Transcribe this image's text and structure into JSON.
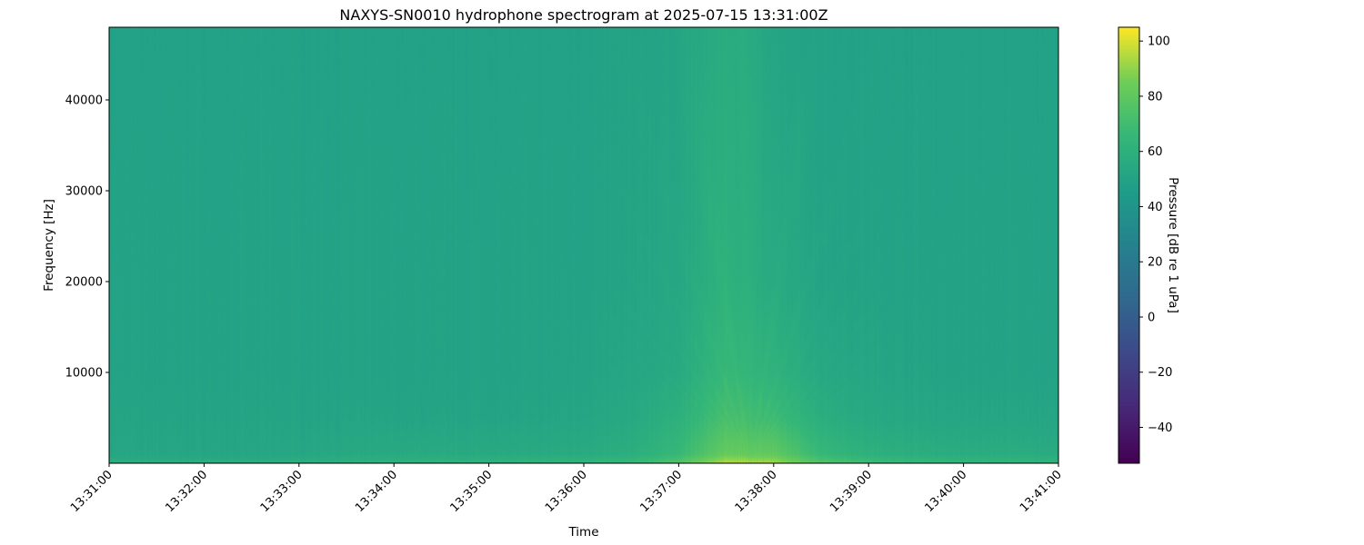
{
  "chart_data": {
    "type": "heatmap",
    "title": "NAXYS-SN0010 hydrophone spectrogram at 2025-07-15 13:31:00Z",
    "xlabel": "Time",
    "ylabel": "Frequency [Hz]",
    "colorbar_label": "Pressure [dB re 1 uPa]",
    "colormap": "viridis",
    "xlim": [
      "13:31:00",
      "13:41:00"
    ],
    "ylim": [
      0,
      48000
    ],
    "clim": [
      -53,
      105
    ],
    "x_ticks": [
      "13:31:00",
      "13:32:00",
      "13:33:00",
      "13:34:00",
      "13:35:00",
      "13:36:00",
      "13:37:00",
      "13:38:00",
      "13:39:00",
      "13:40:00",
      "13:41:00"
    ],
    "y_ticks": [
      "10000",
      "20000",
      "30000",
      "40000"
    ],
    "y_tick_values": [
      10000,
      20000,
      30000,
      40000
    ],
    "colorbar_ticks": [
      "100",
      "80",
      "60",
      "40",
      "20",
      "0",
      "−20",
      "−40"
    ],
    "colorbar_tick_values": [
      100,
      80,
      60,
      40,
      20,
      0,
      -20,
      -40
    ],
    "grid": false,
    "z_estimated": {
      "times": [
        "13:31:00",
        "13:31:30",
        "13:32:00",
        "13:32:30",
        "13:33:00",
        "13:33:30",
        "13:34:00",
        "13:34:30",
        "13:35:00",
        "13:35:30",
        "13:36:00",
        "13:36:30",
        "13:37:00",
        "13:37:30",
        "13:38:00",
        "13:38:30",
        "13:39:00",
        "13:39:30",
        "13:40:00",
        "13:40:30",
        "13:41:00"
      ],
      "frequencies": [
        0,
        1000,
        5000,
        10000,
        20000,
        48000
      ],
      "values_db": [
        [
          58,
          58,
          58,
          58,
          59,
          60,
          61,
          62,
          62,
          63,
          64,
          66,
          76,
          95,
          92,
          76,
          69,
          66,
          64,
          64,
          63
        ],
        [
          52,
          52,
          52,
          52,
          53,
          54,
          55,
          55,
          55,
          55,
          56,
          58,
          66,
          82,
          80,
          66,
          60,
          58,
          57,
          57,
          56
        ],
        [
          51,
          51,
          51,
          51,
          51,
          51,
          51,
          51,
          51,
          51,
          52,
          54,
          60,
          72,
          68,
          58,
          54,
          53,
          52,
          52,
          52
        ],
        [
          50,
          50,
          50,
          50,
          50,
          50,
          50,
          50,
          50,
          50,
          51,
          52,
          55,
          66,
          61,
          54,
          52,
          51,
          50,
          50,
          50
        ],
        [
          50,
          50,
          50,
          50,
          50,
          50,
          50,
          50,
          50,
          50,
          50,
          51,
          53,
          61,
          55,
          51,
          50,
          50,
          50,
          50,
          50
        ],
        [
          49,
          49,
          49,
          49,
          49,
          49,
          49,
          49,
          49,
          49,
          49,
          50,
          51,
          57,
          51,
          49,
          49,
          49,
          49,
          49,
          49
        ]
      ]
    }
  }
}
